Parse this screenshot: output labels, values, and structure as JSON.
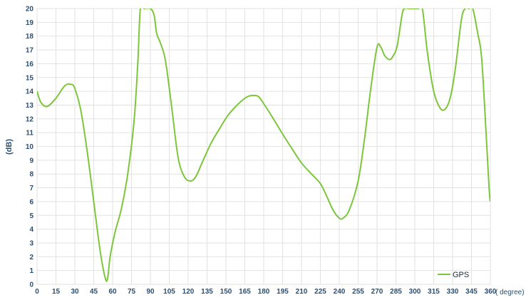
{
  "chart_data": {
    "type": "line",
    "title": "",
    "xlabel": "( degree)",
    "ylabel": "(dB)",
    "xlim": [
      0,
      360
    ],
    "ylim": [
      0,
      20
    ],
    "grid": true,
    "legend_position": "bottom-right",
    "x_ticks": [
      "0",
      "15",
      "30",
      "45",
      "60",
      "75",
      "90",
      "105",
      "120",
      "135",
      "150",
      "165",
      "180",
      "195",
      "210",
      "225",
      "240",
      "255",
      "270",
      "285",
      "300",
      "315",
      "330",
      "345",
      "360"
    ],
    "y_ticks": [
      "0",
      "1",
      "2",
      "3",
      "4",
      "5",
      "6",
      "7",
      "8",
      "9",
      "10",
      "11",
      "12",
      "13",
      "14",
      "15",
      "16",
      "17",
      "18",
      "19",
      "20"
    ],
    "series": [
      {
        "name": "GPS",
        "color": "#7dc63c",
        "x": [
          0,
          3,
          8,
          15,
          22,
          27,
          30,
          35,
          40,
          45,
          50,
          54,
          56,
          58,
          62,
          67,
          72,
          77,
          80,
          82,
          85,
          90,
          93,
          95,
          98,
          102,
          107,
          112,
          117,
          122,
          126,
          131,
          138,
          145,
          152,
          160,
          167,
          172,
          176,
          180,
          187,
          195,
          202,
          210,
          218,
          225,
          230,
          235,
          240,
          243,
          248,
          255,
          260,
          265,
          270,
          273,
          276,
          280,
          283,
          286,
          290,
          292,
          295,
          300,
          303,
          306,
          310,
          315,
          320,
          324,
          328,
          332,
          337,
          340,
          343,
          346,
          350,
          353,
          356,
          359,
          360
        ],
        "values": [
          14.0,
          13.2,
          12.9,
          13.5,
          14.4,
          14.5,
          14.2,
          12.5,
          9.5,
          6.0,
          2.5,
          0.5,
          0.4,
          2.0,
          3.8,
          5.5,
          8.0,
          11.8,
          16.0,
          20.0,
          20.0,
          20.0,
          19.5,
          18.2,
          17.5,
          16.2,
          12.8,
          9.2,
          7.8,
          7.5,
          7.8,
          8.8,
          10.2,
          11.3,
          12.3,
          13.1,
          13.6,
          13.7,
          13.6,
          13.1,
          12.1,
          10.9,
          9.9,
          8.8,
          8.0,
          7.3,
          6.4,
          5.4,
          4.8,
          4.8,
          5.4,
          7.5,
          10.5,
          14.2,
          17.2,
          17.2,
          16.6,
          16.3,
          16.6,
          17.3,
          19.6,
          20.0,
          20.0,
          20.0,
          20.0,
          20.0,
          16.8,
          14.0,
          12.8,
          12.7,
          13.5,
          15.5,
          19.2,
          20.0,
          20.0,
          20.0,
          18.2,
          16.5,
          12.0,
          7.0,
          6.0
        ]
      }
    ]
  }
}
